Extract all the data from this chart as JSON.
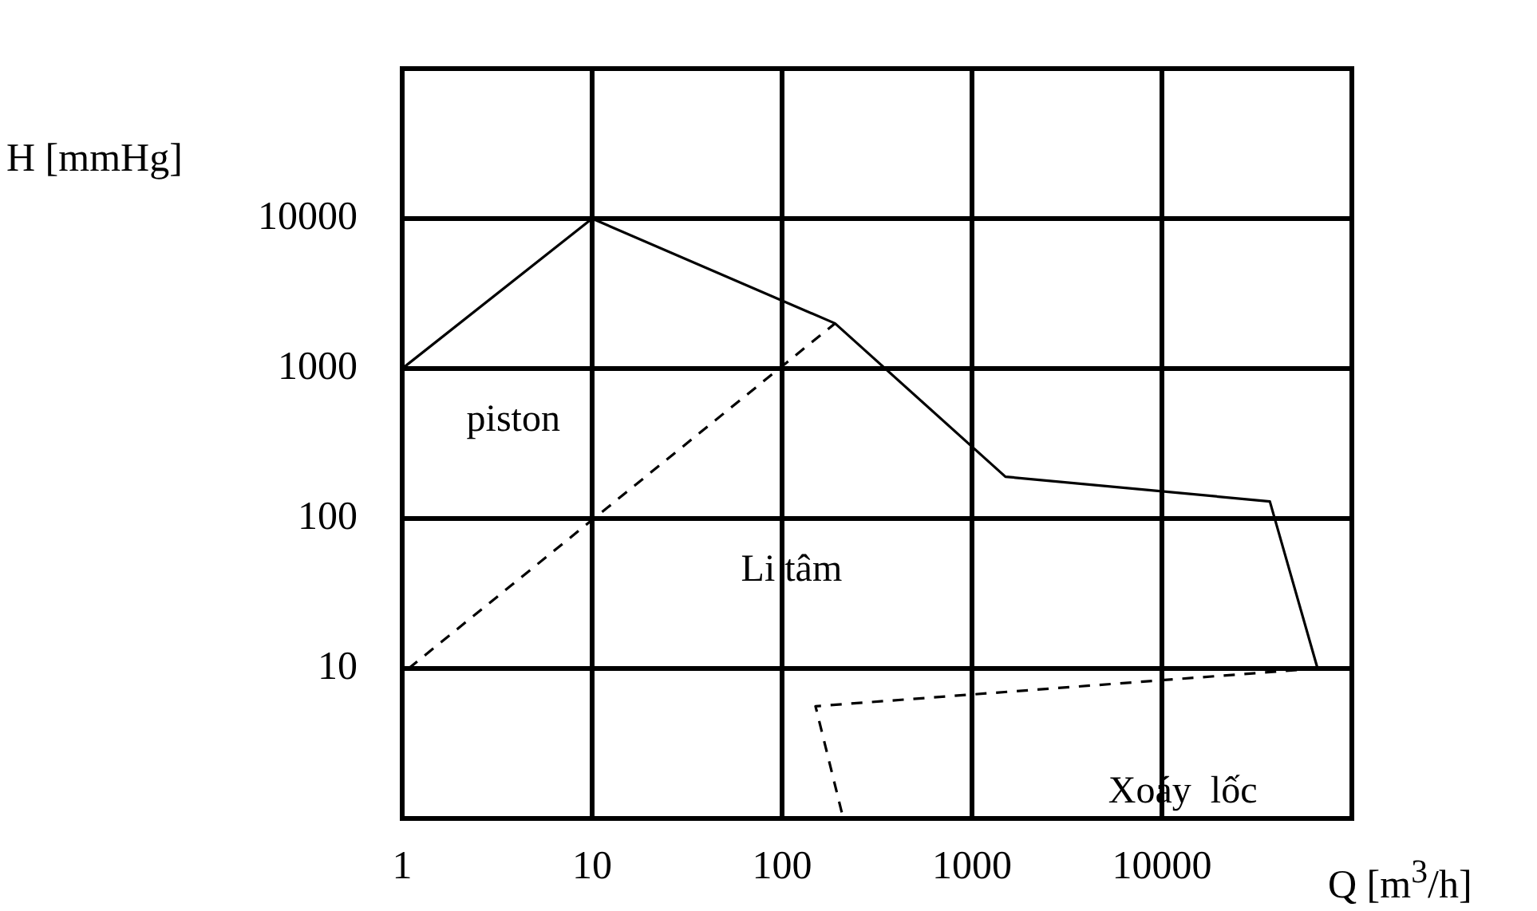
{
  "chart_data": {
    "type": "line",
    "xlabel": "Q [m$^{3}$/h]",
    "ylabel": "H [mmHg]",
    "log": "xy",
    "xlim": [
      1,
      100000
    ],
    "ylim": [
      1,
      100000
    ],
    "xticks": [
      1,
      10,
      100,
      1000,
      10000
    ],
    "yticks": [
      10,
      100,
      1000,
      10000
    ],
    "grid": true,
    "legend": false,
    "marker": "none",
    "series": [
      {
        "color": "#000000",
        "line_style": "solid",
        "x": [
          1,
          10,
          190,
          1500,
          37000,
          66000
        ],
        "values": [
          1000,
          10000,
          2000,
          190,
          130,
          10
        ]
      },
      {
        "color": "#000000",
        "line_style": "dashed",
        "x": [
          1.08,
          190
        ],
        "values": [
          10,
          2000
        ]
      },
      {
        "color": "#000000",
        "line_style": "dashed",
        "x": [
          66000,
          150,
          210
        ],
        "values": [
          10,
          5.6,
          1
        ]
      }
    ],
    "annotations": [
      "piston",
      "Li tâm",
      "Xoáy  lốc"
    ]
  }
}
